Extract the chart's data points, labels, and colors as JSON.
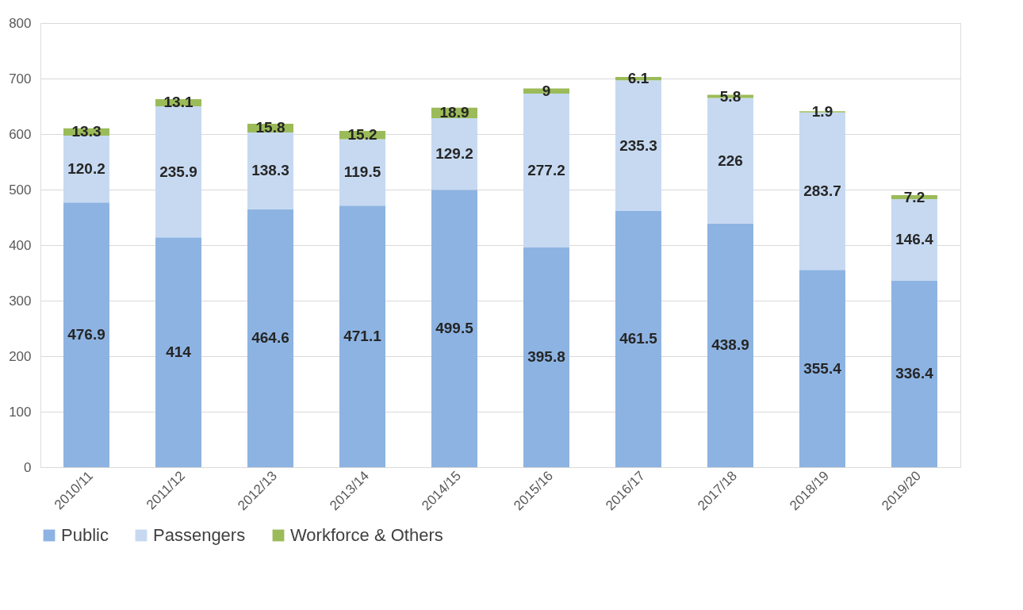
{
  "chart_data": {
    "type": "bar",
    "stacked": true,
    "data_labels": true,
    "grid": "y",
    "legend": "bottom",
    "categories": [
      "2010/11",
      "2011/12",
      "2012/13",
      "2013/14",
      "2014/15",
      "2015/16",
      "2016/17",
      "2017/18",
      "2018/19",
      "2019/20"
    ],
    "series": [
      {
        "name": "Public",
        "color": "#8db3e2",
        "values": [
          476.9,
          414,
          464.6,
          471.1,
          499.5,
          395.8,
          461.5,
          438.9,
          355.4,
          336.4
        ]
      },
      {
        "name": "Passengers",
        "color": "#c6d9f1",
        "values": [
          120.2,
          235.9,
          138.3,
          119.5,
          129.2,
          277.2,
          235.3,
          226,
          283.7,
          146.4
        ]
      },
      {
        "name": "Workforce & Others",
        "color": "#9bbb59",
        "values": [
          13.3,
          13.1,
          15.8,
          15.2,
          18.9,
          9,
          6.1,
          5.8,
          1.9,
          7.2
        ]
      }
    ],
    "ylim": [
      0,
      800
    ],
    "yticks": [
      0,
      100,
      200,
      300,
      400,
      500,
      600,
      700,
      800
    ]
  }
}
